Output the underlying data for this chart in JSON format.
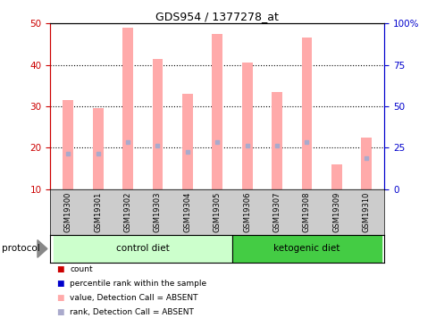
{
  "title": "GDS954 / 1377278_at",
  "samples": [
    "GSM19300",
    "GSM19301",
    "GSM19302",
    "GSM19303",
    "GSM19304",
    "GSM19305",
    "GSM19306",
    "GSM19307",
    "GSM19308",
    "GSM19309",
    "GSM19310"
  ],
  "bar_values": [
    31.5,
    29.5,
    49.0,
    41.5,
    33.0,
    47.5,
    40.5,
    33.5,
    46.5,
    16.0,
    22.5
  ],
  "bar_bottoms": [
    10,
    10,
    10,
    10,
    10,
    10,
    10,
    10,
    10,
    10,
    10
  ],
  "rank_values": [
    18.5,
    18.5,
    21.5,
    20.5,
    19.0,
    21.5,
    20.5,
    20.5,
    21.5,
    10,
    17.5
  ],
  "bar_color": "#ffaaaa",
  "rank_color": "#aaaacc",
  "ylim_left": [
    10,
    50
  ],
  "ylim_right": [
    0,
    100
  ],
  "yticks_left": [
    10,
    20,
    30,
    40,
    50
  ],
  "yticks_right": [
    0,
    25,
    50,
    75,
    100
  ],
  "ytick_labels_right": [
    "0",
    "25",
    "50",
    "75",
    "100%"
  ],
  "groups": [
    {
      "label": "control diet",
      "start": 0,
      "end": 6,
      "color": "#ccffcc"
    },
    {
      "label": "ketogenic diet",
      "start": 6,
      "end": 11,
      "color": "#44cc44"
    }
  ],
  "protocol_label": "protocol",
  "left_tick_color": "#cc0000",
  "right_tick_color": "#0000cc",
  "bar_width": 0.35,
  "legend_items": [
    {
      "label": "count",
      "color": "#cc0000"
    },
    {
      "label": "percentile rank within the sample",
      "color": "#0000cc"
    },
    {
      "label": "value, Detection Call = ABSENT",
      "color": "#ffaaaa"
    },
    {
      "label": "rank, Detection Call = ABSENT",
      "color": "#aaaacc"
    }
  ]
}
